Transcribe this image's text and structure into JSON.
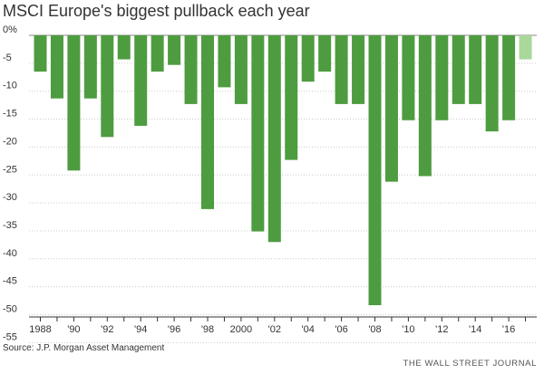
{
  "title": "MSCI Europe's biggest pullback each year",
  "source": "Source: J.P. Morgan Asset Management",
  "publisher": "THE WALL STREET JOURNAL",
  "colors": {
    "bar": "#4e9c40",
    "bar_current": "#a9d89a",
    "gridline": "#cccccc",
    "zero_line": "#888888",
    "text": "#333333"
  },
  "chart_data": {
    "type": "bar",
    "title": "MSCI Europe's biggest pullback each year",
    "xlabel": "",
    "ylabel": "",
    "ylim": [
      -55,
      0
    ],
    "yticks": [
      0,
      -5,
      -10,
      -15,
      -20,
      -25,
      -30,
      -35,
      -40,
      -45,
      -50,
      -55
    ],
    "ytick_labels": [
      "0%",
      "-5",
      "-10",
      "-15",
      "-20",
      "-25",
      "-30",
      "-35",
      "-40",
      "-45",
      "-50",
      "-55"
    ],
    "grid": true,
    "categories": [
      1988,
      1989,
      1990,
      1991,
      1992,
      1993,
      1994,
      1995,
      1996,
      1997,
      1998,
      1999,
      2000,
      2001,
      2002,
      2003,
      2004,
      2005,
      2006,
      2007,
      2008,
      2009,
      2010,
      2011,
      2012,
      2013,
      2014,
      2015,
      2016,
      2017
    ],
    "xtick_labels": [
      "1988",
      "",
      "'90",
      "",
      "'92",
      "",
      "'94",
      "",
      "'96",
      "",
      "'98",
      "",
      "2000",
      "",
      "'02",
      "",
      "'04",
      "",
      "'06",
      "",
      "'08",
      "",
      "'10",
      "",
      "'12",
      "",
      "'14",
      "",
      "'16",
      ""
    ],
    "values": [
      -6.5,
      -11.3,
      -24.2,
      -11.3,
      -18.2,
      -4.3,
      -16.2,
      -6.5,
      -5.3,
      -12.3,
      -31.1,
      -9.3,
      -12.3,
      -35.1,
      -37.0,
      -22.3,
      -8.3,
      -6.5,
      -12.3,
      -12.3,
      -48.3,
      -26.2,
      -15.2,
      -25.2,
      -15.2,
      -12.3,
      -12.3,
      -17.2,
      -15.2,
      -4.3
    ],
    "current_year_index": 29
  }
}
